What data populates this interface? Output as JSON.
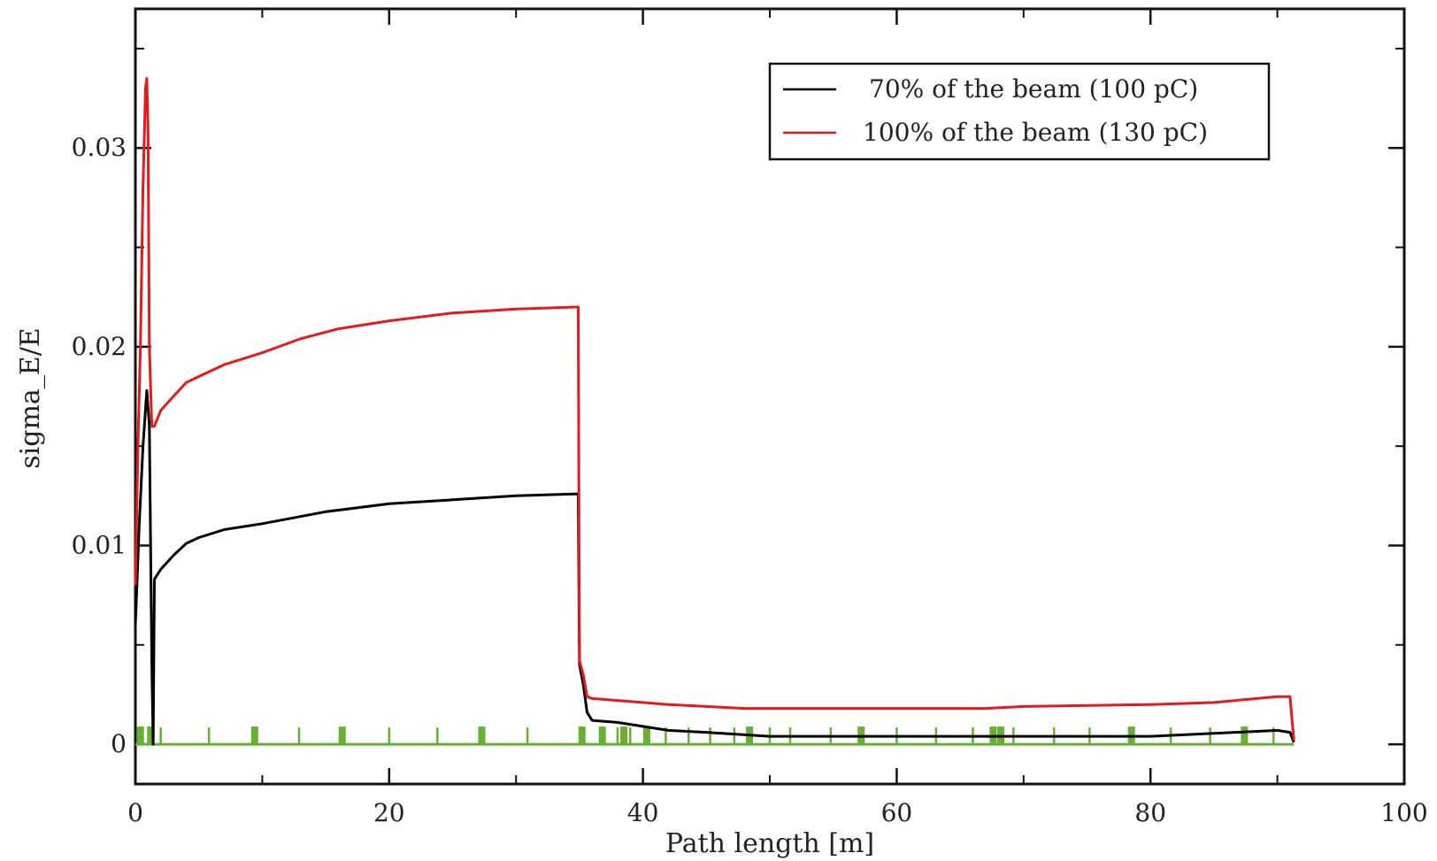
{
  "chart_data": {
    "type": "line",
    "title": "",
    "xlabel": "Path length [m]",
    "ylabel": "sigma_E/E",
    "xlim": [
      0,
      100
    ],
    "ylim": [
      -0.002,
      0.037
    ],
    "x_ticks": [
      0,
      20,
      40,
      60,
      80,
      100
    ],
    "x_tick_labels": [
      "0",
      "20",
      "40",
      "60",
      "80",
      "100"
    ],
    "y_ticks": [
      0,
      0.01,
      0.02,
      0.03
    ],
    "y_tick_labels": [
      "0",
      "0.01",
      "0.02",
      "0.03"
    ],
    "grid": false,
    "legend_position": "top-right",
    "series": [
      {
        "name": "70% of the beam (100 pC)",
        "color": "#000000",
        "x": [
          0,
          0.3,
          0.6,
          0.9,
          1.1,
          1.3,
          1.4,
          1.5,
          2,
          3,
          4,
          5,
          7,
          10,
          15,
          20,
          25,
          30,
          34.9,
          35,
          35.3,
          35.6,
          36,
          38,
          40,
          42,
          45,
          50,
          60,
          70,
          80,
          90,
          91,
          91.3
        ],
        "y": [
          0.006,
          0.011,
          0.015,
          0.0178,
          0.016,
          0.004,
          0,
          0.0083,
          0.0088,
          0.0095,
          0.0101,
          0.0104,
          0.0108,
          0.0111,
          0.0117,
          0.0121,
          0.0123,
          0.0125,
          0.0126,
          0.004,
          0.003,
          0.0016,
          0.0012,
          0.0011,
          0.0009,
          0.0007,
          0.0006,
          0.0004,
          0.0004,
          0.0004,
          0.0004,
          0.0007,
          0.0006,
          0.0001
        ]
      },
      {
        "name": "100% of the beam (130 pC)",
        "color": "#e41a1c",
        "x": [
          0,
          0.2,
          0.4,
          0.6,
          0.8,
          0.9,
          1.0,
          1.1,
          1.2,
          1.3,
          1.5,
          2,
          3,
          4,
          5,
          7,
          10,
          13,
          16,
          20,
          25,
          30,
          34.9,
          35,
          35.3,
          35.6,
          36,
          40,
          42,
          48,
          60,
          67,
          70,
          80,
          85,
          90,
          91,
          91.3
        ],
        "y": [
          0.008,
          0.015,
          0.02,
          0.028,
          0.033,
          0.0335,
          0.031,
          0.02,
          0.018,
          0.016,
          0.016,
          0.0168,
          0.0175,
          0.0182,
          0.0185,
          0.0191,
          0.0197,
          0.0204,
          0.0209,
          0.0213,
          0.0217,
          0.0219,
          0.022,
          0.0042,
          0.0035,
          0.0024,
          0.0023,
          0.0021,
          0.002,
          0.0018,
          0.0018,
          0.0018,
          0.0019,
          0.002,
          0.0021,
          0.0024,
          0.0024,
          0.0002
        ]
      }
    ],
    "element_markers": {
      "color": "#66b032",
      "thin_x": [
        2,
        5.8,
        9.4,
        12.9,
        16.3,
        20,
        23.8,
        27.3,
        30.9,
        38,
        39,
        41.8,
        43.6,
        45.3,
        47.2,
        50,
        51.6,
        54.8,
        57.2,
        60,
        63.1,
        66,
        69.2,
        72.4,
        75.2,
        78.5,
        81.6,
        84.7,
        87.4,
        89.7
      ],
      "thick_x": [
        0.4,
        1.2,
        9.4,
        16.3,
        27.3,
        35.2,
        36.8,
        38.5,
        40.3,
        48.4,
        57.2,
        67.6,
        68.2,
        78.5,
        87.4
      ],
      "baseline_end": 91.3
    }
  }
}
